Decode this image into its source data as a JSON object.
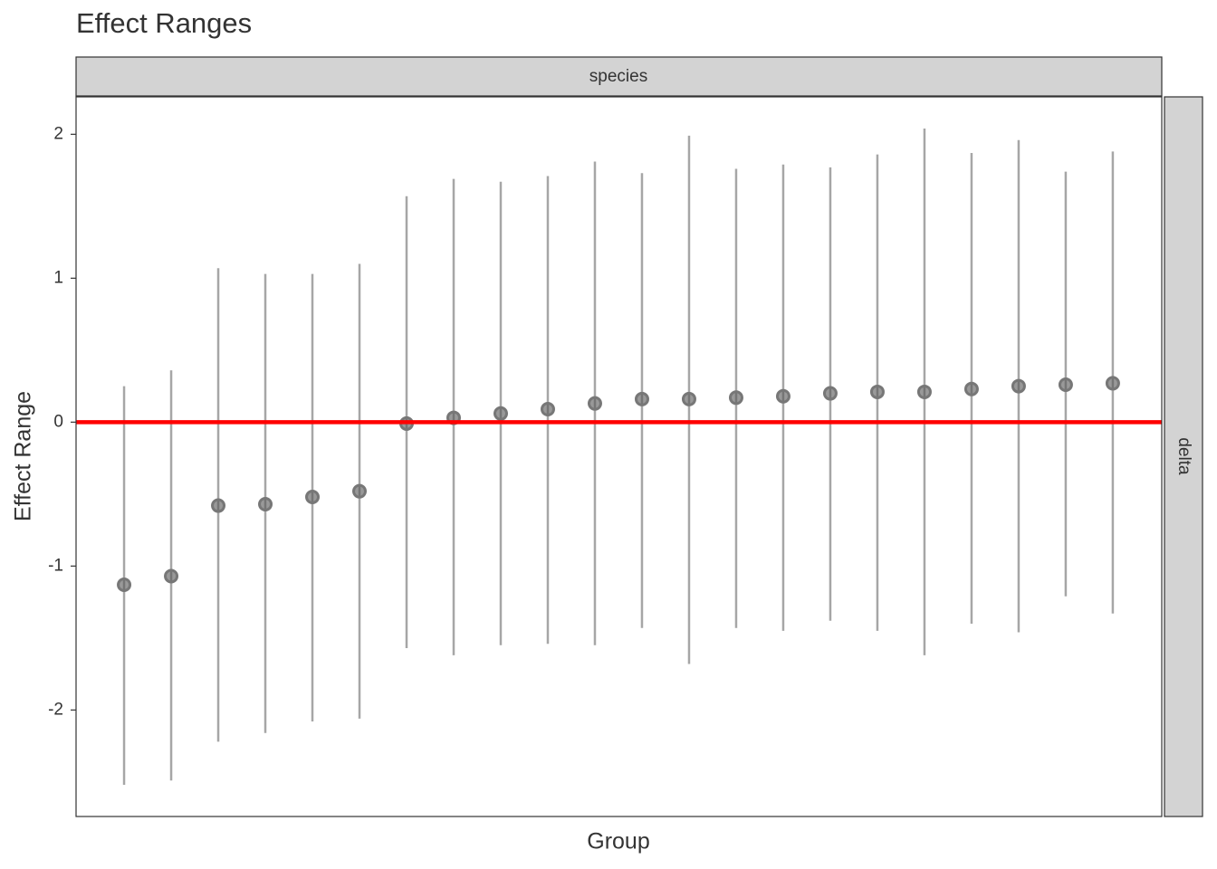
{
  "chart_data": {
    "type": "pointrange",
    "title": "Effect Ranges",
    "x_label": "Group",
    "y_label": "Effect Range",
    "facet_top": "species",
    "facet_right": "delta",
    "categories": [
      null,
      null,
      null,
      null,
      null,
      null,
      null,
      null,
      null,
      null,
      null,
      null,
      null,
      null,
      null,
      null,
      null,
      null,
      null,
      null,
      null,
      null
    ],
    "values": [
      -1.13,
      -1.07,
      -0.58,
      -0.57,
      -0.52,
      -0.48,
      -0.01,
      0.03,
      0.06,
      0.09,
      0.13,
      0.16,
      0.16,
      0.17,
      0.18,
      0.2,
      0.21,
      0.21,
      0.23,
      0.25,
      0.26,
      0.27
    ],
    "lower": [
      -2.52,
      -2.49,
      -2.22,
      -2.16,
      -2.08,
      -2.06,
      -1.57,
      -1.62,
      -1.55,
      -1.54,
      -1.55,
      -1.43,
      -1.68,
      -1.43,
      -1.45,
      -1.38,
      -1.45,
      -1.62,
      -1.4,
      -1.46,
      -1.21,
      -1.33
    ],
    "upper": [
      0.25,
      0.36,
      1.07,
      1.03,
      1.03,
      1.1,
      1.57,
      1.69,
      1.67,
      1.71,
      1.81,
      1.73,
      1.99,
      1.76,
      1.79,
      1.77,
      1.86,
      2.04,
      1.87,
      1.96,
      1.74,
      1.88
    ],
    "color": "#555555",
    "range_color": "#a6a6a6",
    "reference_line": 0,
    "reference_color": "#ff0000",
    "ylim": [
      -2.74,
      2.26
    ],
    "yticks": [
      -2,
      -1,
      0,
      1,
      2
    ],
    "grid": false
  }
}
